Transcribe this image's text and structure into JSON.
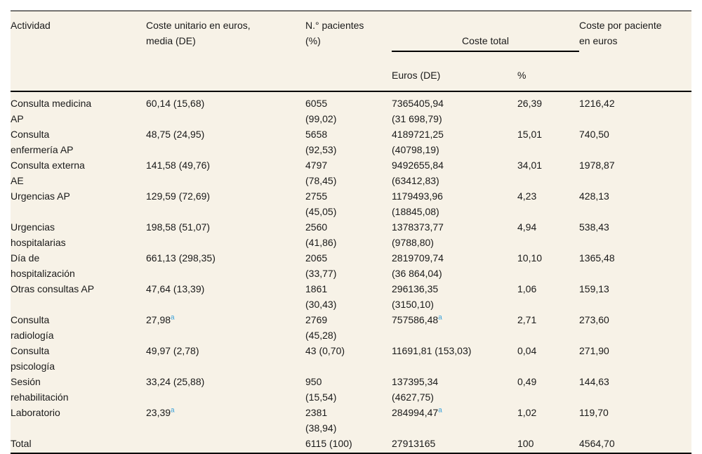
{
  "colors": {
    "table_background": "#f7f2e7",
    "text": "#1a1a1a",
    "rule": "#000000",
    "footnote_link": "#3ba1d9"
  },
  "table": {
    "header": {
      "actividad": "Actividad",
      "coste_unitario": "Coste unitario en euros,\nmedia (DE)",
      "n_pacientes": "N.° pacientes\n(%)",
      "coste_total": "Coste total",
      "euros_de": "Euros (DE)",
      "pct": "%",
      "coste_por_paciente": "Coste por paciente\nen euros"
    },
    "col_keys": [
      "actividad",
      "coste_unitario",
      "n_pacientes",
      "euros_de",
      "pct",
      "coste_por_paciente"
    ],
    "rows": [
      {
        "cells": [
          "Consulta medicina\nAP",
          "60,14 (15,68)",
          "6055\n(99,02)",
          "7365405,94\n(31 698,79)",
          "26,39",
          "1216,42"
        ]
      },
      {
        "cells": [
          "Consulta\nenfermería AP",
          "48,75 (24,95)",
          "5658\n(92,53)",
          "4189721,25\n(40798,19)",
          "15,01",
          "740,50"
        ]
      },
      {
        "cells": [
          "Consulta externa\nAE",
          "141,58 (49,76)",
          "4797\n(78,45)",
          "9492655,84\n(63412,83)",
          "34,01",
          "1978,87"
        ]
      },
      {
        "cells": [
          "Urgencias AP",
          "129,59 (72,69)",
          "2755\n(45,05)",
          "1179493,96\n(18845,08)",
          "4,23",
          "428,13"
        ]
      },
      {
        "cells": [
          "Urgencias\nhospitalarias",
          "198,58 (51,07)",
          "2560\n(41,86)",
          "1378373,77\n(9788,80)",
          "4,94",
          "538,43"
        ]
      },
      {
        "cells": [
          "Día de\nhospitalización",
          "661,13 (298,35)",
          "2065\n(33,77)",
          "2819709,74\n(36 864,04)",
          "10,10",
          "1365,48"
        ]
      },
      {
        "cells": [
          "Otras consultas AP",
          "47,64 (13,39)",
          "1861\n(30,43)",
          "296136,35\n(3150,10)",
          "1,06",
          "159,13"
        ]
      },
      {
        "cells": [
          "Consulta\nradiología",
          {
            "text": "27,98",
            "sup": "a"
          },
          "2769\n(45,28)",
          {
            "text": "757586,48",
            "sup": "a"
          },
          "2,71",
          "273,60"
        ]
      },
      {
        "cells": [
          "Consulta\npsicología",
          "49,97 (2,78)",
          "43 (0,70)",
          "11691,81 (153,03)",
          "0,04",
          "271,90"
        ]
      },
      {
        "cells": [
          "Sesión\nrehabilitación",
          "33,24 (25,88)",
          "950\n(15,54)",
          "137395,34\n(4627,75)",
          "0,49",
          "144,63"
        ]
      },
      {
        "cells": [
          "Laboratorio",
          {
            "text": "23,39",
            "sup": "a"
          },
          "2381\n(38,94)",
          {
            "text": "284994,47",
            "sup": "a"
          },
          "1,02",
          "119,70"
        ]
      },
      {
        "cells": [
          "Total",
          "",
          "6115 (100)",
          "27913165",
          "100",
          "4564,70"
        ]
      }
    ]
  }
}
